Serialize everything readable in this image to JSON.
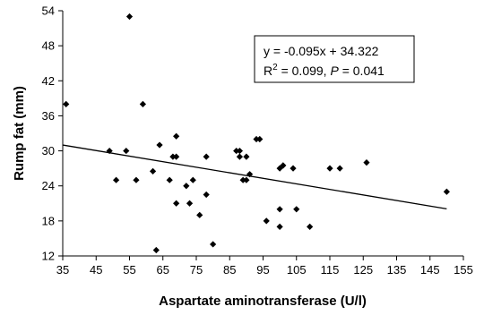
{
  "chart_data": {
    "type": "scatter",
    "title": "",
    "xlabel": "Aspartate aminotransferase (U/l)",
    "ylabel": "Rump fat (mm)",
    "xlim": [
      35,
      155
    ],
    "ylim": [
      12,
      54
    ],
    "x_ticks": [
      35,
      45,
      55,
      65,
      75,
      85,
      95,
      105,
      115,
      125,
      135,
      145,
      155
    ],
    "y_ticks": [
      12,
      18,
      24,
      30,
      36,
      42,
      48,
      54
    ],
    "grid": false,
    "legend": "none",
    "marker_color": "#000000",
    "points": [
      {
        "x": 36,
        "y": 38
      },
      {
        "x": 49,
        "y": 30
      },
      {
        "x": 51,
        "y": 25
      },
      {
        "x": 54,
        "y": 30
      },
      {
        "x": 55,
        "y": 53
      },
      {
        "x": 57,
        "y": 25
      },
      {
        "x": 59,
        "y": 38
      },
      {
        "x": 62,
        "y": 26.5
      },
      {
        "x": 63,
        "y": 13
      },
      {
        "x": 64,
        "y": 31
      },
      {
        "x": 67,
        "y": 25
      },
      {
        "x": 68,
        "y": 29
      },
      {
        "x": 69,
        "y": 21
      },
      {
        "x": 69,
        "y": 29
      },
      {
        "x": 69,
        "y": 32.5
      },
      {
        "x": 72,
        "y": 24
      },
      {
        "x": 73,
        "y": 21
      },
      {
        "x": 74,
        "y": 25
      },
      {
        "x": 76,
        "y": 19
      },
      {
        "x": 78,
        "y": 29
      },
      {
        "x": 78,
        "y": 22.5
      },
      {
        "x": 80,
        "y": 14
      },
      {
        "x": 87,
        "y": 30
      },
      {
        "x": 88,
        "y": 29
      },
      {
        "x": 88,
        "y": 30
      },
      {
        "x": 89,
        "y": 25
      },
      {
        "x": 90,
        "y": 25
      },
      {
        "x": 90,
        "y": 29
      },
      {
        "x": 91,
        "y": 26
      },
      {
        "x": 93,
        "y": 32
      },
      {
        "x": 94,
        "y": 32
      },
      {
        "x": 96,
        "y": 18
      },
      {
        "x": 100,
        "y": 27
      },
      {
        "x": 100,
        "y": 20
      },
      {
        "x": 100,
        "y": 17
      },
      {
        "x": 101,
        "y": 27.5
      },
      {
        "x": 104,
        "y": 27
      },
      {
        "x": 105,
        "y": 20
      },
      {
        "x": 109,
        "y": 17
      },
      {
        "x": 115,
        "y": 27
      },
      {
        "x": 118,
        "y": 27
      },
      {
        "x": 126,
        "y": 28
      },
      {
        "x": 150,
        "y": 23
      }
    ],
    "trendline": {
      "slope": -0.095,
      "intercept": 34.322,
      "x_start": 35,
      "x_end": 150
    },
    "annotation": {
      "equation": "y = -0.095x + 34.322",
      "r_symbol": "R",
      "r_exponent": "2",
      "r_value": " = 0.099, ",
      "p_symbol": "P",
      "p_value": " = 0.041"
    }
  }
}
